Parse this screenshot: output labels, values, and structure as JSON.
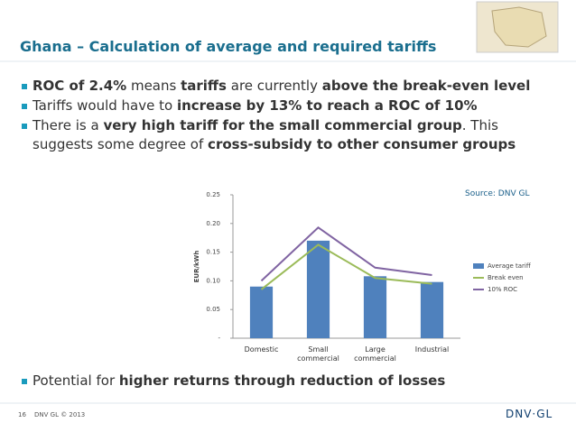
{
  "header": {
    "title": "Ghana – Calculation of average and required tariffs"
  },
  "bullets": [
    [
      {
        "text": "ROC of 2.4%",
        "bold": true
      },
      {
        "text": "  means ",
        "bold": false
      },
      {
        "text": "tariffs",
        "bold": true
      },
      {
        "text": " are currently ",
        "bold": false
      },
      {
        "text": "above the break-even level",
        "bold": true
      }
    ],
    [
      {
        "text": "Tariffs would have to ",
        "bold": false
      },
      {
        "text": "increase by 13%  to reach a ROC of 10%",
        "bold": true
      }
    ],
    [
      {
        "text": "There is a ",
        "bold": false
      },
      {
        "text": "very high tariff for the small commercial group",
        "bold": true
      },
      {
        "text": ". This suggests some degree of ",
        "bold": false
      },
      {
        "text": "cross-subsidy to other consumer groups",
        "bold": true
      }
    ]
  ],
  "last_bullet": [
    {
      "text": "Potential for ",
      "bold": false
    },
    {
      "text": "higher returns through reduction of losses",
      "bold": true
    }
  ],
  "source": "Source: DNV GL",
  "footer": {
    "page": "16",
    "copyright": "DNV GL © 2013",
    "logo": "DNV·GL"
  },
  "chart_data": {
    "type": "bar",
    "y_label": "EUR/kWh",
    "categories": [
      "Domestic",
      "Small commercial",
      "Large commercial",
      "Industrial"
    ],
    "series": [
      {
        "name": "Average tariff",
        "color": "#4f81bd",
        "type": "bar",
        "values": [
          0.09,
          0.17,
          0.108,
          0.098
        ]
      },
      {
        "name": "Break even",
        "color": "#9bbb59",
        "type": "line",
        "values": [
          0.085,
          0.163,
          0.105,
          0.095
        ]
      },
      {
        "name": "10% ROC",
        "color": "#8064a2",
        "type": "line",
        "values": [
          0.1,
          0.193,
          0.123,
          0.11
        ]
      }
    ],
    "ylim": [
      0,
      0.25
    ],
    "yticks": [
      {
        "value": 0,
        "label": "-"
      },
      0.05,
      {
        "value": 0.1,
        "label": "0.10"
      },
      0.15,
      {
        "value": 0.2,
        "label": "0.20"
      },
      0.25
    ],
    "legend": "right"
  }
}
